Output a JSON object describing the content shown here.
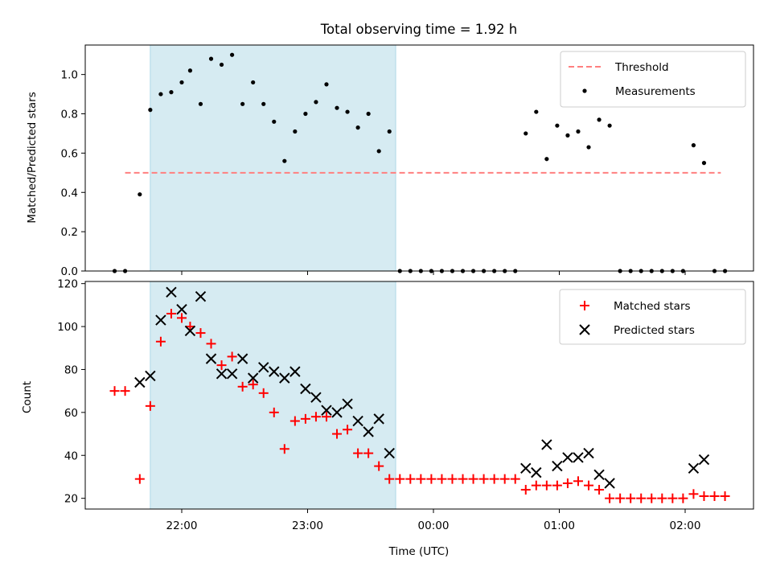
{
  "chart_data": [
    {
      "type": "scatter",
      "title": "Total observing time = 1.92 h",
      "xlabel": "",
      "ylabel": "Matched/Predicted stars",
      "ylim": [
        0,
        1.15
      ],
      "yticks": [
        "0.0",
        "0.2",
        "0.4",
        "0.6",
        "0.8",
        "1.0"
      ],
      "xticks": [
        "22:00",
        "23:00",
        "00:00",
        "01:00",
        "02:00"
      ],
      "shaded_interval": {
        "start": "21:45",
        "end": "23:42",
        "color": "#add8e6"
      },
      "threshold": {
        "name": "Threshold",
        "value": 0.5,
        "x_start": "21:33",
        "x_end": "02:17",
        "color": "#ff7f7f"
      },
      "legend": {
        "position": "top-right",
        "entries": [
          "Threshold",
          "Measurements"
        ]
      },
      "series": [
        {
          "name": "Measurements",
          "marker": "dot",
          "color": "#000000",
          "points": [
            [
              "21:28",
              0
            ],
            [
              "21:33",
              0
            ],
            [
              "21:40",
              0.39
            ],
            [
              "21:45",
              0.82
            ],
            [
              "21:50",
              0.9
            ],
            [
              "21:55",
              0.91
            ],
            [
              "22:00",
              0.96
            ],
            [
              "22:04",
              1.02
            ],
            [
              "22:09",
              0.85
            ],
            [
              "22:14",
              1.08
            ],
            [
              "22:19",
              1.05
            ],
            [
              "22:24",
              1.1
            ],
            [
              "22:29",
              0.85
            ],
            [
              "22:34",
              0.96
            ],
            [
              "22:39",
              0.85
            ],
            [
              "22:44",
              0.76
            ],
            [
              "22:49",
              0.56
            ],
            [
              "22:54",
              0.71
            ],
            [
              "22:59",
              0.8
            ],
            [
              "23:04",
              0.86
            ],
            [
              "23:09",
              0.95
            ],
            [
              "23:14",
              0.83
            ],
            [
              "23:19",
              0.81
            ],
            [
              "23:24",
              0.73
            ],
            [
              "23:29",
              0.8
            ],
            [
              "23:34",
              0.61
            ],
            [
              "23:39",
              0.71
            ],
            [
              "23:44",
              0
            ],
            [
              "23:49",
              0
            ],
            [
              "23:54",
              0
            ],
            [
              "23:59",
              0
            ],
            [
              "00:04",
              0
            ],
            [
              "00:09",
              0
            ],
            [
              "00:14",
              0
            ],
            [
              "00:19",
              0
            ],
            [
              "00:24",
              0
            ],
            [
              "00:29",
              0
            ],
            [
              "00:34",
              0
            ],
            [
              "00:39",
              0
            ],
            [
              "00:44",
              0.7
            ],
            [
              "00:49",
              0.81
            ],
            [
              "00:54",
              0.57
            ],
            [
              "00:59",
              0.74
            ],
            [
              "01:04",
              0.69
            ],
            [
              "01:09",
              0.71
            ],
            [
              "01:14",
              0.63
            ],
            [
              "01:19",
              0.77
            ],
            [
              "01:24",
              0.74
            ],
            [
              "01:29",
              0
            ],
            [
              "01:34",
              0
            ],
            [
              "01:39",
              0
            ],
            [
              "01:44",
              0
            ],
            [
              "01:49",
              0
            ],
            [
              "01:54",
              0
            ],
            [
              "01:59",
              0
            ],
            [
              "02:04",
              0.64
            ],
            [
              "02:09",
              0.55
            ],
            [
              "02:14",
              0
            ],
            [
              "02:19",
              0
            ]
          ]
        }
      ]
    },
    {
      "type": "scatter",
      "title": "",
      "xlabel": "Time (UTC)",
      "ylabel": "Count",
      "ylim": [
        15,
        121
      ],
      "yticks": [
        "20",
        "40",
        "60",
        "80",
        "100",
        "120"
      ],
      "xticks": [
        "22:00",
        "23:00",
        "00:00",
        "01:00",
        "02:00"
      ],
      "shaded_interval": {
        "start": "21:45",
        "end": "23:42",
        "color": "#add8e6"
      },
      "legend": {
        "position": "top-right",
        "entries": [
          "Matched stars",
          "Predicted stars"
        ]
      },
      "series": [
        {
          "name": "Matched stars",
          "marker": "plus",
          "color": "#ff0000",
          "points": [
            [
              "21:28",
              70
            ],
            [
              "21:33",
              70
            ],
            [
              "21:40",
              29
            ],
            [
              "21:45",
              63
            ],
            [
              "21:50",
              93
            ],
            [
              "21:55",
              106
            ],
            [
              "22:00",
              104
            ],
            [
              "22:04",
              100
            ],
            [
              "22:09",
              97
            ],
            [
              "22:14",
              92
            ],
            [
              "22:19",
              82
            ],
            [
              "22:24",
              86
            ],
            [
              "22:29",
              72
            ],
            [
              "22:34",
              73
            ],
            [
              "22:39",
              69
            ],
            [
              "22:44",
              60
            ],
            [
              "22:49",
              43
            ],
            [
              "22:54",
              56
            ],
            [
              "22:59",
              57
            ],
            [
              "23:04",
              58
            ],
            [
              "23:09",
              58
            ],
            [
              "23:14",
              50
            ],
            [
              "23:19",
              52
            ],
            [
              "23:24",
              41
            ],
            [
              "23:29",
              41
            ],
            [
              "23:34",
              35
            ],
            [
              "23:39",
              29
            ],
            [
              "23:44",
              29
            ],
            [
              "23:49",
              29
            ],
            [
              "23:54",
              29
            ],
            [
              "23:59",
              29
            ],
            [
              "00:04",
              29
            ],
            [
              "00:09",
              29
            ],
            [
              "00:14",
              29
            ],
            [
              "00:19",
              29
            ],
            [
              "00:24",
              29
            ],
            [
              "00:29",
              29
            ],
            [
              "00:34",
              29
            ],
            [
              "00:39",
              29
            ],
            [
              "00:44",
              24
            ],
            [
              "00:49",
              26
            ],
            [
              "00:54",
              26
            ],
            [
              "00:59",
              26
            ],
            [
              "01:04",
              27
            ],
            [
              "01:09",
              28
            ],
            [
              "01:14",
              26
            ],
            [
              "01:19",
              24
            ],
            [
              "01:24",
              20
            ],
            [
              "01:29",
              20
            ],
            [
              "01:34",
              20
            ],
            [
              "01:39",
              20
            ],
            [
              "01:44",
              20
            ],
            [
              "01:49",
              20
            ],
            [
              "01:54",
              20
            ],
            [
              "01:59",
              20
            ],
            [
              "02:04",
              22
            ],
            [
              "02:09",
              21
            ],
            [
              "02:14",
              21
            ],
            [
              "02:19",
              21
            ]
          ]
        },
        {
          "name": "Predicted stars",
          "marker": "x",
          "color": "#000000",
          "points": [
            [
              "21:40",
              74
            ],
            [
              "21:45",
              77
            ],
            [
              "21:50",
              103
            ],
            [
              "21:55",
              116
            ],
            [
              "22:00",
              108
            ],
            [
              "22:04",
              98
            ],
            [
              "22:09",
              114
            ],
            [
              "22:14",
              85
            ],
            [
              "22:19",
              78
            ],
            [
              "22:24",
              78
            ],
            [
              "22:29",
              85
            ],
            [
              "22:34",
              76
            ],
            [
              "22:39",
              81
            ],
            [
              "22:44",
              79
            ],
            [
              "22:49",
              76
            ],
            [
              "22:54",
              79
            ],
            [
              "22:59",
              71
            ],
            [
              "23:04",
              67
            ],
            [
              "23:09",
              61
            ],
            [
              "23:14",
              60
            ],
            [
              "23:19",
              64
            ],
            [
              "23:24",
              56
            ],
            [
              "23:29",
              51
            ],
            [
              "23:34",
              57
            ],
            [
              "23:39",
              41
            ],
            [
              "00:44",
              34
            ],
            [
              "00:49",
              32
            ],
            [
              "00:54",
              45
            ],
            [
              "00:59",
              35
            ],
            [
              "01:04",
              39
            ],
            [
              "01:09",
              39
            ],
            [
              "01:14",
              41
            ],
            [
              "01:19",
              31
            ],
            [
              "01:24",
              27
            ],
            [
              "02:04",
              34
            ],
            [
              "02:09",
              38
            ]
          ]
        }
      ]
    }
  ]
}
